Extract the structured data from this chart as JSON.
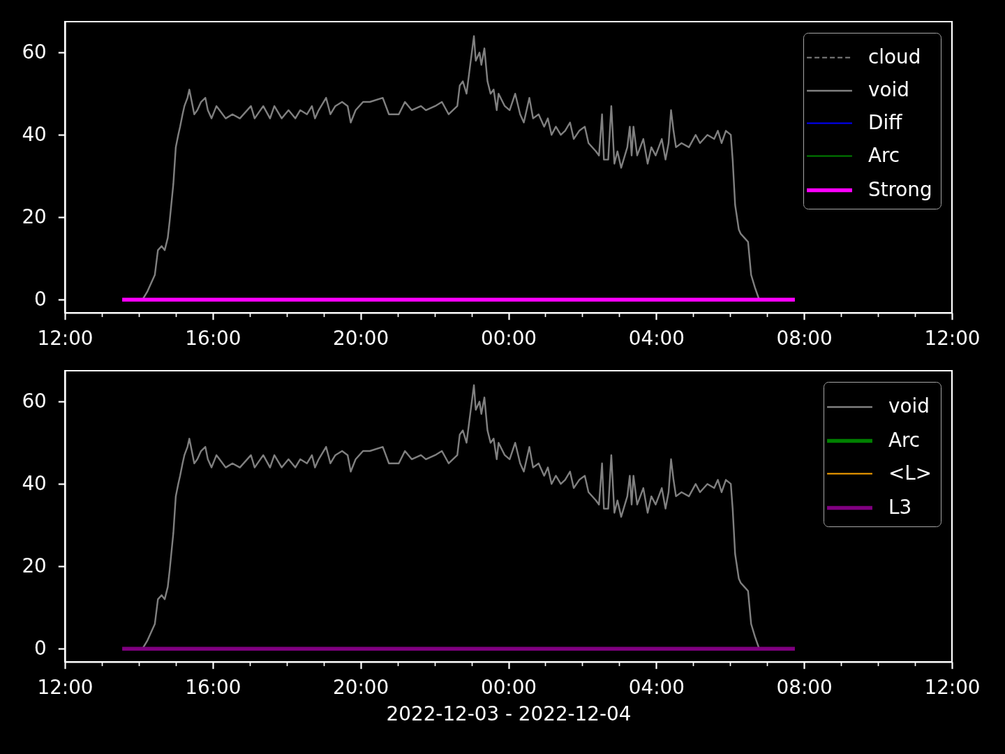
{
  "chart_data": [
    {
      "type": "line",
      "legend": "top right",
      "xlim": [
        "2022-12-03T12:00",
        "2022-12-04T12:00"
      ],
      "xticks": [
        {
          "value": "2022-12-03T12:00",
          "label": "12:00"
        },
        {
          "value": "2022-12-03T13:00",
          "label": null
        },
        {
          "value": "2022-12-03T14:00",
          "label": null
        },
        {
          "value": "2022-12-03T15:00",
          "label": null
        },
        {
          "value": "2022-12-03T16:00",
          "label": "16:00"
        },
        {
          "value": "2022-12-03T17:00",
          "label": null
        },
        {
          "value": "2022-12-03T18:00",
          "label": null
        },
        {
          "value": "2022-12-03T19:00",
          "label": null
        },
        {
          "value": "2022-12-03T20:00",
          "label": "20:00"
        },
        {
          "value": "2022-12-03T21:00",
          "label": null
        },
        {
          "value": "2022-12-03T22:00",
          "label": null
        },
        {
          "value": "2022-12-03T23:00",
          "label": null
        },
        {
          "value": "2022-12-04T00:00",
          "label": "00:00"
        },
        {
          "value": "2022-12-04T01:00",
          "label": null
        },
        {
          "value": "2022-12-04T02:00",
          "label": null
        },
        {
          "value": "2022-12-04T03:00",
          "label": null
        },
        {
          "value": "2022-12-04T04:00",
          "label": "04:00"
        },
        {
          "value": "2022-12-04T05:00",
          "label": null
        },
        {
          "value": "2022-12-04T06:00",
          "label": null
        },
        {
          "value": "2022-12-04T07:00",
          "label": null
        },
        {
          "value": "2022-12-04T08:00",
          "label": "08:00"
        },
        {
          "value": "2022-12-04T09:00",
          "label": null
        },
        {
          "value": "2022-12-04T10:00",
          "label": null
        },
        {
          "value": "2022-12-04T11:00",
          "label": null
        },
        {
          "value": "2022-12-04T12:00",
          "label": "12:00"
        }
      ],
      "ylim": [
        -3.2,
        67.5
      ],
      "yticks": [
        0,
        20,
        40,
        60
      ],
      "series": [
        {
          "name": "cloud",
          "color": "#808080",
          "line_style": "dashed"
        },
        {
          "name": "void",
          "color": "#808080",
          "line_style": "solid",
          "x": [
            "2022-12-03T14:06",
            "2022-12-03T14:14",
            "2022-12-03T14:26",
            "2022-12-03T14:31",
            "2022-12-03T14:37",
            "2022-12-03T14:42",
            "2022-12-03T14:47",
            "2022-12-03T14:50",
            "2022-12-03T14:56",
            "2022-12-03T15:00",
            "2022-12-03T15:04",
            "2022-12-03T15:07",
            "2022-12-03T15:11",
            "2022-12-03T15:14",
            "2022-12-03T15:19",
            "2022-12-03T15:22",
            "2022-12-03T15:26",
            "2022-12-03T15:30",
            "2022-12-03T15:35",
            "2022-12-03T15:41",
            "2022-12-03T15:48",
            "2022-12-03T15:52",
            "2022-12-03T15:58",
            "2022-12-03T16:06",
            "2022-12-03T16:11",
            "2022-12-03T16:21",
            "2022-12-03T16:32",
            "2022-12-03T16:44",
            "2022-12-03T17:02",
            "2022-12-03T17:08",
            "2022-12-03T17:22",
            "2022-12-03T17:33",
            "2022-12-03T17:40",
            "2022-12-03T17:52",
            "2022-12-03T18:03",
            "2022-12-03T18:14",
            "2022-12-03T18:22",
            "2022-12-03T18:33",
            "2022-12-03T18:41",
            "2022-12-03T18:46",
            "2022-12-03T18:52",
            "2022-12-03T19:04",
            "2022-12-03T19:11",
            "2022-12-03T19:19",
            "2022-12-03T19:30",
            "2022-12-03T19:39",
            "2022-12-03T19:44",
            "2022-12-03T19:52",
            "2022-12-03T20:04",
            "2022-12-03T20:15",
            "2022-12-03T20:36",
            "2022-12-03T20:46",
            "2022-12-03T21:02",
            "2022-12-03T21:12",
            "2022-12-03T21:23",
            "2022-12-03T21:38",
            "2022-12-03T21:46",
            "2022-12-03T22:01",
            "2022-12-03T22:12",
            "2022-12-03T22:23",
            "2022-12-03T22:37",
            "2022-12-03T22:41",
            "2022-12-03T22:46",
            "2022-12-03T22:52",
            "2022-12-03T22:58",
            "2022-12-03T23:04",
            "2022-12-03T23:07",
            "2022-12-03T23:13",
            "2022-12-03T23:16",
            "2022-12-03T23:21",
            "2022-12-03T23:26",
            "2022-12-03T23:31",
            "2022-12-03T23:36",
            "2022-12-03T23:41",
            "2022-12-03T23:44",
            "2022-12-03T23:54",
            "2022-12-04T00:02",
            "2022-12-04T00:11",
            "2022-12-04T00:19",
            "2022-12-04T00:25",
            "2022-12-04T00:34",
            "2022-12-04T00:40",
            "2022-12-04T00:49",
            "2022-12-04T00:58",
            "2022-12-04T01:04",
            "2022-12-04T01:10",
            "2022-12-04T01:17",
            "2022-12-04T01:25",
            "2022-12-04T01:32",
            "2022-12-04T01:40",
            "2022-12-04T01:46",
            "2022-12-04T01:55",
            "2022-12-04T02:04",
            "2022-12-04T02:10",
            "2022-12-04T02:22",
            "2022-12-04T02:27",
            "2022-12-04T02:32",
            "2022-12-04T02:35",
            "2022-12-04T02:42",
            "2022-12-04T02:47",
            "2022-12-04T02:52",
            "2022-12-04T02:57",
            "2022-12-04T03:03",
            "2022-12-04T03:13",
            "2022-12-04T03:17",
            "2022-12-04T03:20",
            "2022-12-04T03:23",
            "2022-12-04T03:29",
            "2022-12-04T03:39",
            "2022-12-04T03:46",
            "2022-12-04T03:52",
            "2022-12-04T03:59",
            "2022-12-04T04:09",
            "2022-12-04T04:15",
            "2022-12-04T04:20",
            "2022-12-04T04:24",
            "2022-12-04T04:28",
            "2022-12-04T04:32",
            "2022-12-04T04:41",
            "2022-12-04T04:53",
            "2022-12-04T05:04",
            "2022-12-04T05:11",
            "2022-12-04T05:23",
            "2022-12-04T05:34",
            "2022-12-04T05:40",
            "2022-12-04T05:46",
            "2022-12-04T05:53",
            "2022-12-04T06:01",
            "2022-12-04T06:04",
            "2022-12-04T06:08",
            "2022-12-04T06:14",
            "2022-12-04T06:17",
            "2022-12-04T06:23",
            "2022-12-04T06:29",
            "2022-12-04T06:34",
            "2022-12-04T06:40",
            "2022-12-04T06:47"
          ],
          "values": [
            0,
            2,
            6,
            12,
            13,
            12,
            15,
            19,
            28,
            37,
            40,
            42,
            45,
            47,
            49,
            51,
            48,
            45,
            46,
            48,
            49,
            46,
            44,
            47,
            46,
            44,
            45,
            44,
            47,
            44,
            47,
            44,
            47,
            44,
            46,
            44,
            46,
            45,
            47,
            44,
            46,
            49,
            45,
            47,
            48,
            47,
            43,
            46,
            48,
            48,
            49,
            45,
            45,
            48,
            46,
            47,
            46,
            47,
            48,
            45,
            47,
            52,
            53,
            50,
            57,
            64,
            58,
            60,
            57,
            61,
            53,
            50,
            51,
            46,
            50,
            47,
            46,
            50,
            45,
            43,
            49,
            44,
            45,
            42,
            44,
            40,
            42,
            40,
            41,
            43,
            39,
            41,
            42,
            38,
            36,
            35,
            45,
            34,
            34,
            47,
            33,
            36,
            32,
            37,
            42,
            35,
            42,
            35,
            39,
            33,
            37,
            35,
            39,
            34,
            38,
            46,
            41,
            37,
            38,
            37,
            40,
            38,
            40,
            39,
            41,
            38,
            41,
            40,
            34,
            23,
            17,
            16,
            15,
            14,
            6,
            3,
            0
          ]
        },
        {
          "name": "Diff",
          "color": "#0000ff"
        },
        {
          "name": "Arc",
          "color": "#008000"
        },
        {
          "name": "Strong",
          "color": "#ff00ff",
          "line_style": "solid",
          "x": [
            "2022-12-03T13:33",
            "2022-12-04T07:45"
          ],
          "values": [
            0,
            0
          ]
        }
      ]
    },
    {
      "type": "line",
      "legend": "top right",
      "xlabel": "2022-12-03 - 2022-12-04",
      "xlim": [
        "2022-12-03T12:00",
        "2022-12-04T12:00"
      ],
      "xticks": [
        {
          "value": "2022-12-03T12:00",
          "label": "12:00"
        },
        {
          "value": "2022-12-03T13:00",
          "label": null
        },
        {
          "value": "2022-12-03T14:00",
          "label": null
        },
        {
          "value": "2022-12-03T15:00",
          "label": null
        },
        {
          "value": "2022-12-03T16:00",
          "label": "16:00"
        },
        {
          "value": "2022-12-03T17:00",
          "label": null
        },
        {
          "value": "2022-12-03T18:00",
          "label": null
        },
        {
          "value": "2022-12-03T19:00",
          "label": null
        },
        {
          "value": "2022-12-03T20:00",
          "label": "20:00"
        },
        {
          "value": "2022-12-03T21:00",
          "label": null
        },
        {
          "value": "2022-12-03T22:00",
          "label": null
        },
        {
          "value": "2022-12-03T23:00",
          "label": null
        },
        {
          "value": "2022-12-04T00:00",
          "label": "00:00"
        },
        {
          "value": "2022-12-04T01:00",
          "label": null
        },
        {
          "value": "2022-12-04T02:00",
          "label": null
        },
        {
          "value": "2022-12-04T03:00",
          "label": null
        },
        {
          "value": "2022-12-04T04:00",
          "label": "04:00"
        },
        {
          "value": "2022-12-04T05:00",
          "label": null
        },
        {
          "value": "2022-12-04T06:00",
          "label": null
        },
        {
          "value": "2022-12-04T07:00",
          "label": null
        },
        {
          "value": "2022-12-04T08:00",
          "label": "08:00"
        },
        {
          "value": "2022-12-04T09:00",
          "label": null
        },
        {
          "value": "2022-12-04T10:00",
          "label": null
        },
        {
          "value": "2022-12-04T11:00",
          "label": null
        },
        {
          "value": "2022-12-04T12:00",
          "label": "12:00"
        }
      ],
      "ylim": [
        -3.2,
        67.5
      ],
      "yticks": [
        0,
        20,
        40,
        60
      ],
      "series": [
        {
          "name": "void",
          "color": "#808080",
          "line_style": "solid",
          "x": [
            "2022-12-03T14:06",
            "2022-12-03T14:14",
            "2022-12-03T14:26",
            "2022-12-03T14:31",
            "2022-12-03T14:37",
            "2022-12-03T14:42",
            "2022-12-03T14:47",
            "2022-12-03T14:50",
            "2022-12-03T14:56",
            "2022-12-03T15:00",
            "2022-12-03T15:04",
            "2022-12-03T15:07",
            "2022-12-03T15:11",
            "2022-12-03T15:14",
            "2022-12-03T15:19",
            "2022-12-03T15:22",
            "2022-12-03T15:26",
            "2022-12-03T15:30",
            "2022-12-03T15:35",
            "2022-12-03T15:41",
            "2022-12-03T15:48",
            "2022-12-03T15:52",
            "2022-12-03T15:58",
            "2022-12-03T16:06",
            "2022-12-03T16:11",
            "2022-12-03T16:21",
            "2022-12-03T16:32",
            "2022-12-03T16:44",
            "2022-12-03T17:02",
            "2022-12-03T17:08",
            "2022-12-03T17:22",
            "2022-12-03T17:33",
            "2022-12-03T17:40",
            "2022-12-03T17:52",
            "2022-12-03T18:03",
            "2022-12-03T18:14",
            "2022-12-03T18:22",
            "2022-12-03T18:33",
            "2022-12-03T18:41",
            "2022-12-03T18:46",
            "2022-12-03T18:52",
            "2022-12-03T19:04",
            "2022-12-03T19:11",
            "2022-12-03T19:19",
            "2022-12-03T19:30",
            "2022-12-03T19:39",
            "2022-12-03T19:44",
            "2022-12-03T19:52",
            "2022-12-03T20:04",
            "2022-12-03T20:15",
            "2022-12-03T20:36",
            "2022-12-03T20:46",
            "2022-12-03T21:02",
            "2022-12-03T21:12",
            "2022-12-03T21:23",
            "2022-12-03T21:38",
            "2022-12-03T21:46",
            "2022-12-03T22:01",
            "2022-12-03T22:12",
            "2022-12-03T22:23",
            "2022-12-03T22:37",
            "2022-12-03T22:41",
            "2022-12-03T22:46",
            "2022-12-03T22:52",
            "2022-12-03T22:58",
            "2022-12-03T23:04",
            "2022-12-03T23:07",
            "2022-12-03T23:13",
            "2022-12-03T23:16",
            "2022-12-03T23:21",
            "2022-12-03T23:26",
            "2022-12-03T23:31",
            "2022-12-03T23:36",
            "2022-12-03T23:41",
            "2022-12-03T23:44",
            "2022-12-03T23:54",
            "2022-12-04T00:02",
            "2022-12-04T00:11",
            "2022-12-04T00:19",
            "2022-12-04T00:25",
            "2022-12-04T00:34",
            "2022-12-04T00:40",
            "2022-12-04T00:49",
            "2022-12-04T00:58",
            "2022-12-04T01:04",
            "2022-12-04T01:10",
            "2022-12-04T01:17",
            "2022-12-04T01:25",
            "2022-12-04T01:32",
            "2022-12-04T01:40",
            "2022-12-04T01:46",
            "2022-12-04T01:55",
            "2022-12-04T02:04",
            "2022-12-04T02:10",
            "2022-12-04T02:22",
            "2022-12-04T02:27",
            "2022-12-04T02:32",
            "2022-12-04T02:35",
            "2022-12-04T02:42",
            "2022-12-04T02:47",
            "2022-12-04T02:52",
            "2022-12-04T02:57",
            "2022-12-04T03:03",
            "2022-12-04T03:13",
            "2022-12-04T03:17",
            "2022-12-04T03:20",
            "2022-12-04T03:23",
            "2022-12-04T03:29",
            "2022-12-04T03:39",
            "2022-12-04T03:46",
            "2022-12-04T03:52",
            "2022-12-04T03:59",
            "2022-12-04T04:09",
            "2022-12-04T04:15",
            "2022-12-04T04:20",
            "2022-12-04T04:24",
            "2022-12-04T04:28",
            "2022-12-04T04:32",
            "2022-12-04T04:41",
            "2022-12-04T04:53",
            "2022-12-04T05:04",
            "2022-12-04T05:11",
            "2022-12-04T05:23",
            "2022-12-04T05:34",
            "2022-12-04T05:40",
            "2022-12-04T05:46",
            "2022-12-04T05:53",
            "2022-12-04T06:01",
            "2022-12-04T06:04",
            "2022-12-04T06:08",
            "2022-12-04T06:14",
            "2022-12-04T06:17",
            "2022-12-04T06:23",
            "2022-12-04T06:29",
            "2022-12-04T06:34",
            "2022-12-04T06:40",
            "2022-12-04T06:47"
          ],
          "values": [
            0,
            2,
            6,
            12,
            13,
            12,
            15,
            19,
            28,
            37,
            40,
            42,
            45,
            47,
            49,
            51,
            48,
            45,
            46,
            48,
            49,
            46,
            44,
            47,
            46,
            44,
            45,
            44,
            47,
            44,
            47,
            44,
            47,
            44,
            46,
            44,
            46,
            45,
            47,
            44,
            46,
            49,
            45,
            47,
            48,
            47,
            43,
            46,
            48,
            48,
            49,
            45,
            45,
            48,
            46,
            47,
            46,
            47,
            48,
            45,
            47,
            52,
            53,
            50,
            57,
            64,
            58,
            60,
            57,
            61,
            53,
            50,
            51,
            46,
            50,
            47,
            46,
            50,
            45,
            43,
            49,
            44,
            45,
            42,
            44,
            40,
            42,
            40,
            41,
            43,
            39,
            41,
            42,
            38,
            36,
            35,
            45,
            34,
            34,
            47,
            33,
            36,
            32,
            37,
            42,
            35,
            42,
            35,
            39,
            33,
            37,
            35,
            39,
            34,
            38,
            46,
            41,
            37,
            38,
            37,
            40,
            38,
            40,
            39,
            41,
            38,
            41,
            40,
            34,
            23,
            17,
            16,
            15,
            14,
            6,
            3,
            0
          ]
        },
        {
          "name": "Arc",
          "color": "#008000"
        },
        {
          "name": "<L>",
          "color": "#ffa500"
        },
        {
          "name": "L3",
          "color": "#800080",
          "line_style": "solid",
          "x": [
            "2022-12-03T13:33",
            "2022-12-04T07:45"
          ],
          "values": [
            0,
            0
          ]
        }
      ]
    }
  ]
}
